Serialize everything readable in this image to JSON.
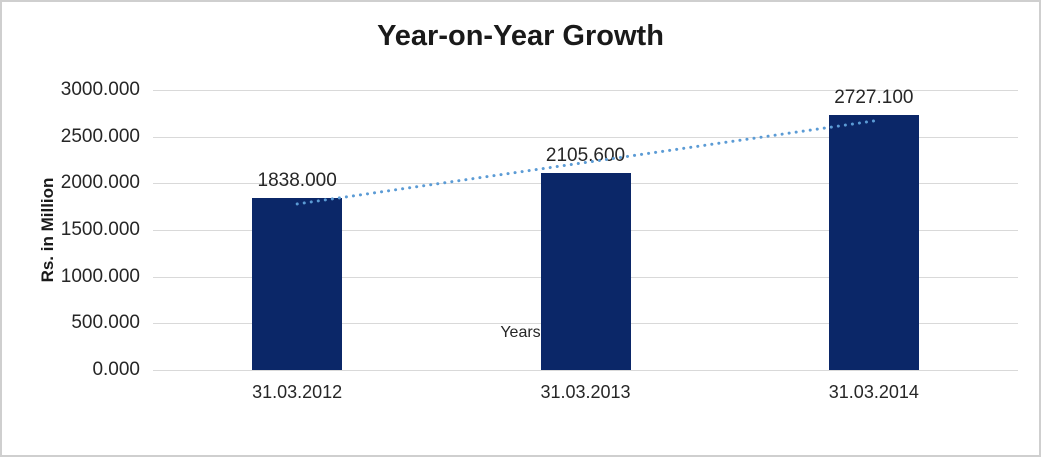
{
  "chart_data": {
    "type": "bar",
    "title": "Year-on-Year Growth",
    "categories": [
      "31.03.2012",
      "31.03.2013",
      "31.03.2014"
    ],
    "values": [
      1838.0,
      2105.6,
      2727.1
    ],
    "value_labels": [
      "1838.000",
      "2105.600",
      "2727.100"
    ],
    "xlabel": "Years",
    "ylabel": "Rs. in Million",
    "ylim": [
      0,
      3000
    ],
    "ytick_step": 500,
    "ytick_labels": [
      "0.000",
      "500.000",
      "1000.000",
      "1500.000",
      "2000.000",
      "2500.000",
      "3000.000"
    ],
    "grid": true,
    "legend": "none",
    "trendline": {
      "kind": "linear",
      "style": "dotted"
    },
    "colors": {
      "bar": "#0b2768",
      "trendline": "#5b9bd5",
      "gridline": "#d9d9d9",
      "text": "#262626",
      "title": "#1a1a1a",
      "border": "#cfcfcf",
      "background": "#ffffff"
    }
  }
}
